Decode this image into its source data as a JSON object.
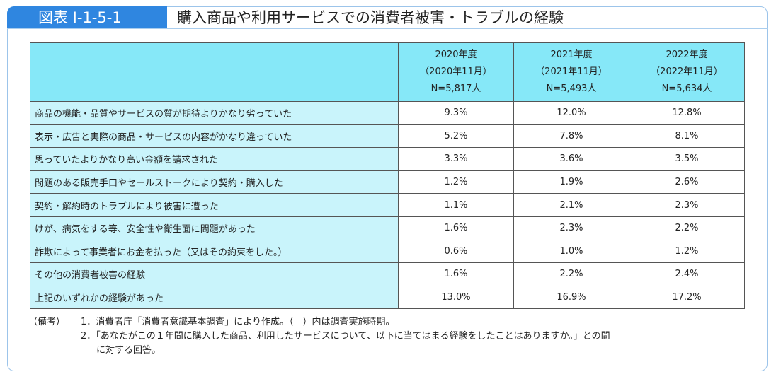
{
  "figure": {
    "tag": "図表 I-1-5-1",
    "title": "購入商品や利用サービスでの消費者被害・トラブルの経験"
  },
  "table": {
    "columns": [
      {
        "year": "2020年度",
        "period": "（2020年11月）",
        "n": "N=5,817人"
      },
      {
        "year": "2021年度",
        "period": "（2021年11月）",
        "n": "N=5,493人"
      },
      {
        "year": "2022年度",
        "period": "（2022年11月）",
        "n": "N=5,634人"
      }
    ],
    "rows": [
      {
        "label": "商品の機能・品質やサービスの質が期待よりかなり劣っていた",
        "values": [
          "9.3%",
          "12.0%",
          "12.8%"
        ]
      },
      {
        "label": "表示・広告と実際の商品・サービスの内容がかなり違っていた",
        "values": [
          "5.2%",
          "7.8%",
          "8.1%"
        ]
      },
      {
        "label": "思っていたよりかなり高い金額を請求された",
        "values": [
          "3.3%",
          "3.6%",
          "3.5%"
        ]
      },
      {
        "label": "問題のある販売手口やセールストークにより契約・購入した",
        "values": [
          "1.2%",
          "1.9%",
          "2.6%"
        ]
      },
      {
        "label": "契約・解約時のトラブルにより被害に遭った",
        "values": [
          "1.1%",
          "2.1%",
          "2.3%"
        ]
      },
      {
        "label": "けが、病気をする等、安全性や衛生面に問題があった",
        "values": [
          "1.6%",
          "2.3%",
          "2.2%"
        ]
      },
      {
        "label": "詐欺によって事業者にお金を払った（又はその約束をした。）",
        "values": [
          "0.6%",
          "1.0%",
          "1.2%"
        ]
      },
      {
        "label": "その他の消費者被害の経験",
        "values": [
          "1.6%",
          "2.2%",
          "2.4%"
        ]
      },
      {
        "label": "上記のいずれかの経験があった",
        "values": [
          "13.0%",
          "16.9%",
          "17.2%"
        ]
      }
    ]
  },
  "notes": {
    "heading": "（備考）",
    "items": [
      "1．消費者庁「消費者意識基本調査」により作成。（　）内は調査実施時期。",
      "2．「あなたがこの１年間に購入した商品、利用したサービスについて、以下に当てはまる経験をしたことはありますか。」との問",
      "に対する回答。"
    ]
  },
  "colors": {
    "tag_bg": "#2f86e0",
    "header_bg": "#86e8f8",
    "label_bg": "#c9f4fb"
  }
}
